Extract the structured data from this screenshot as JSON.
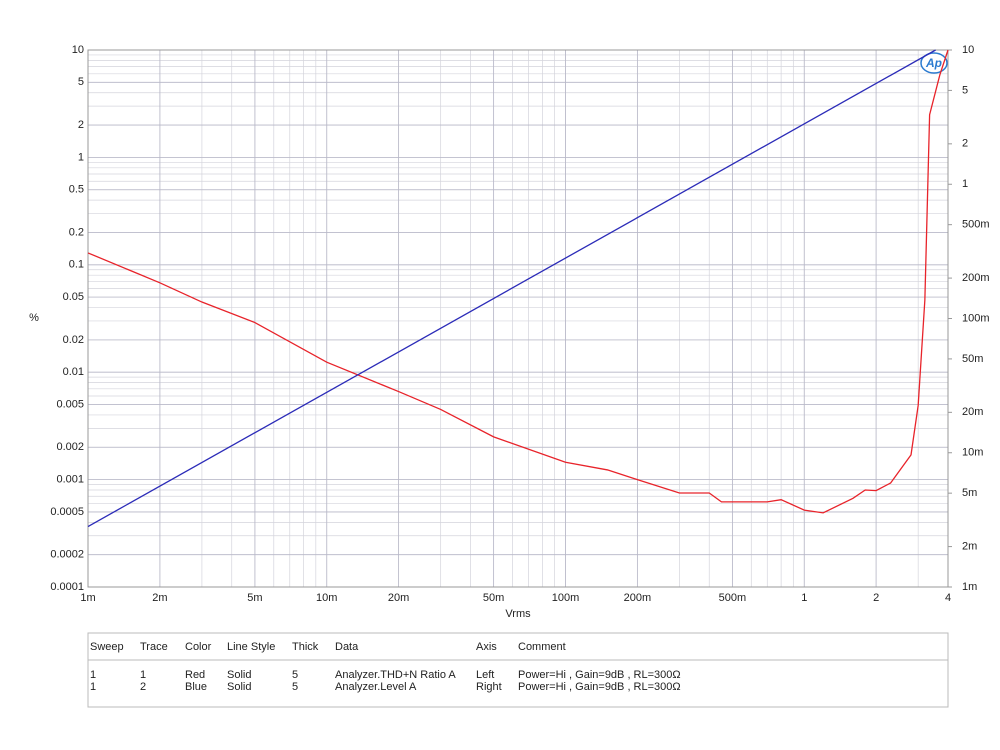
{
  "chart_data": {
    "type": "line",
    "xlabel": "Vrms",
    "ylabel": "%",
    "logo": "Ap",
    "xscale": "log",
    "yscale": "log",
    "y2scale": "log",
    "grid": true,
    "minor_grid": true,
    "xlim": [
      0.001,
      4
    ],
    "xticks": [
      {
        "value": 0.001,
        "label": "1m"
      },
      {
        "value": 0.002,
        "label": "2m"
      },
      {
        "value": 0.005,
        "label": "5m"
      },
      {
        "value": 0.01,
        "label": "10m"
      },
      {
        "value": 0.02,
        "label": "20m"
      },
      {
        "value": 0.05,
        "label": "50m"
      },
      {
        "value": 0.1,
        "label": "100m"
      },
      {
        "value": 0.2,
        "label": "200m"
      },
      {
        "value": 0.5,
        "label": "500m"
      },
      1,
      2,
      4
    ],
    "ylim": [
      0.0001,
      10
    ],
    "yticks": [
      10,
      5,
      2,
      1,
      0.5,
      0.2,
      0.1,
      0.05,
      0.02,
      0.01,
      0.005,
      0.002,
      0.001,
      0.0005,
      0.0002,
      0.0001
    ],
    "y2lim": [
      0.001,
      10
    ],
    "y2ticks": [
      10,
      5,
      2,
      1,
      {
        "value": 0.5,
        "label": "500m"
      },
      {
        "value": 0.2,
        "label": "200m"
      },
      {
        "value": 0.1,
        "label": "100m"
      },
      {
        "value": 0.05,
        "label": "50m"
      },
      {
        "value": 0.02,
        "label": "20m"
      },
      {
        "value": 0.01,
        "label": "10m"
      },
      {
        "value": 0.005,
        "label": "5m"
      },
      {
        "value": 0.002,
        "label": "2m"
      },
      {
        "value": 0.001,
        "label": "1m"
      }
    ],
    "series": [
      {
        "name": "Analyzer.THD+N Ratio A",
        "color": "#e8232a",
        "axis": "y",
        "x": [
          0.001,
          0.002,
          0.003,
          0.005,
          0.01,
          0.02,
          0.03,
          0.05,
          0.1,
          0.15,
          0.2,
          0.3,
          0.4,
          0.45,
          0.6,
          0.7,
          0.8,
          1,
          1.2,
          1.6,
          1.8,
          2,
          2.3,
          2.8,
          3.0,
          3.2,
          3.35,
          3.7,
          4
        ],
        "values": [
          0.129,
          0.068,
          0.045,
          0.029,
          0.0124,
          0.0066,
          0.0045,
          0.0025,
          0.00145,
          0.00123,
          0.001,
          0.00075,
          0.00075,
          0.00062,
          0.00062,
          0.00062,
          0.00065,
          0.00052,
          0.00049,
          0.00067,
          0.0008,
          0.00079,
          0.00093,
          0.0017,
          0.0049,
          0.047,
          2.5,
          5.9,
          10
        ]
      },
      {
        "name": "Analyzer.Level A",
        "color": "#2b2bb8",
        "axis": "y2",
        "x": [
          0.001,
          3.55
        ],
        "values": [
          0.00282,
          10
        ]
      }
    ]
  },
  "table": {
    "headers": [
      "Sweep",
      "Trace",
      "Color",
      "Line Style",
      "Thick",
      "Data",
      "Axis",
      "Comment"
    ],
    "rows": [
      [
        "1",
        "1",
        "Red",
        "Solid",
        "5",
        "Analyzer.THD+N Ratio A",
        "Left",
        "Power=Hi , Gain=9dB , RL=300Ω"
      ],
      [
        "1",
        "2",
        "Blue",
        "Solid",
        "5",
        "Analyzer.Level A",
        "Right",
        "Power=Hi , Gain=9dB , RL=300Ω"
      ]
    ]
  }
}
